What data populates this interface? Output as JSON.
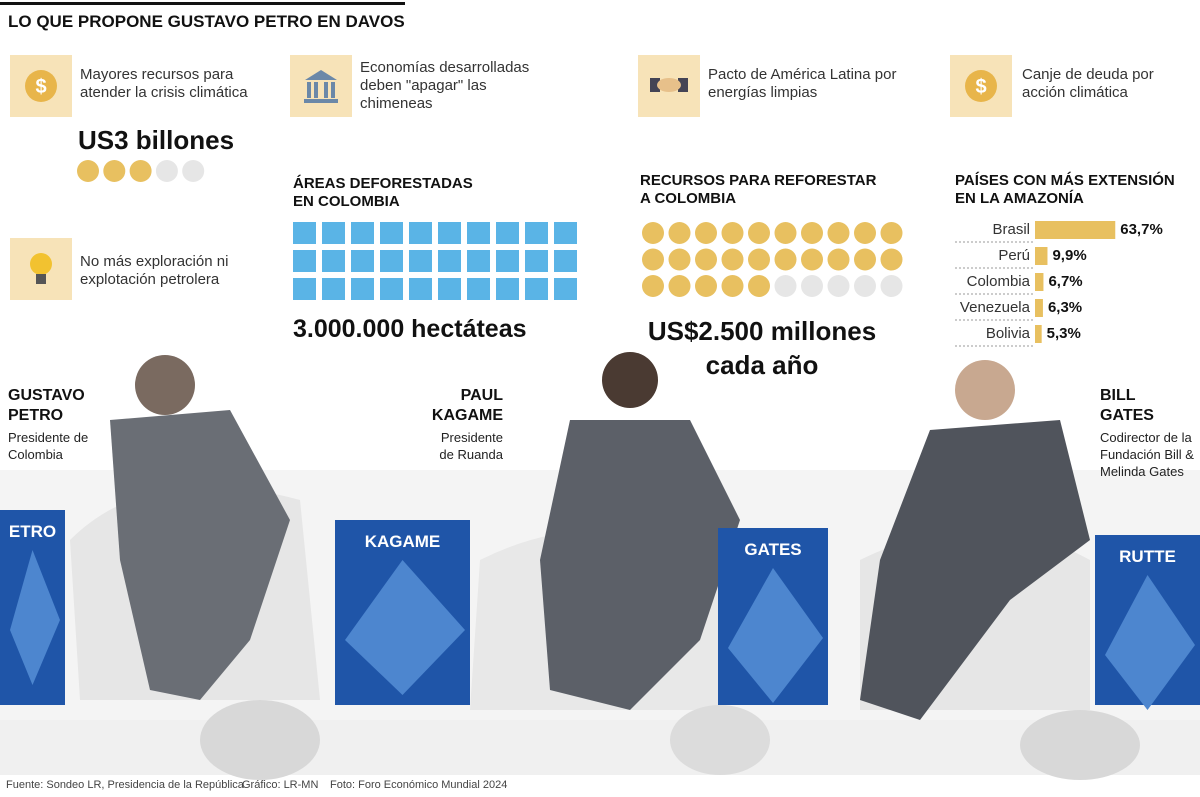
{
  "title": "LO QUE PROPONE GUSTAVO PETRO EN DAVOS",
  "proposals": [
    "Mayores recursos para atender la crisis climática",
    "Economías desarrolladas deben \"apagar\" las chimeneas",
    "Pacto de América Latina por energías limpias",
    "Canje de deuda por acción climática",
    "No más exploración ni explotación petrolera"
  ],
  "climate_funds": {
    "value": "US3 billones",
    "filled": 3,
    "total": 5
  },
  "deforestation": {
    "title": "ÁREAS DEFORESTADAS EN COLOMBIA",
    "count": 30,
    "value": "3.000.000 hectáteas"
  },
  "reforestation": {
    "title": "RECURSOS PARA REFORESTAR A COLOMBIA",
    "filled": 25,
    "total": 30,
    "value": "US$2.500 millones cada año"
  },
  "amazon": {
    "type": "bar",
    "title": "PAÍSES CON MÁS EXTENSIÓN EN LA AMAZONÍA",
    "color": "#e8c060",
    "categories": [
      "Brasil",
      "Perú",
      "Colombia",
      "Venezuela",
      "Bolivia"
    ],
    "values": [
      63.7,
      9.9,
      6.7,
      6.3,
      5.3
    ],
    "value_labels": [
      "63,7%",
      "9,9%",
      "6,7%",
      "6,3%",
      "5,3%"
    ]
  },
  "people": [
    {
      "name": "GUSTAVO PETRO",
      "role": "Presidente de Colombia"
    },
    {
      "name": "PAUL KAGAME",
      "role": "Presidente de Ruanda"
    },
    {
      "name": "BILL GATES",
      "role": "Codirector de la Fundación Bill & Melinda Gates"
    }
  ],
  "panels": [
    "ETRO",
    "KAGAME",
    "GATES",
    "RUTTE"
  ],
  "footer": [
    "Fuente: Sondeo LR, Presidencia de la República",
    "Gráfico: LR-MN",
    "Foto: Foro Económico Mundial 2024"
  ]
}
